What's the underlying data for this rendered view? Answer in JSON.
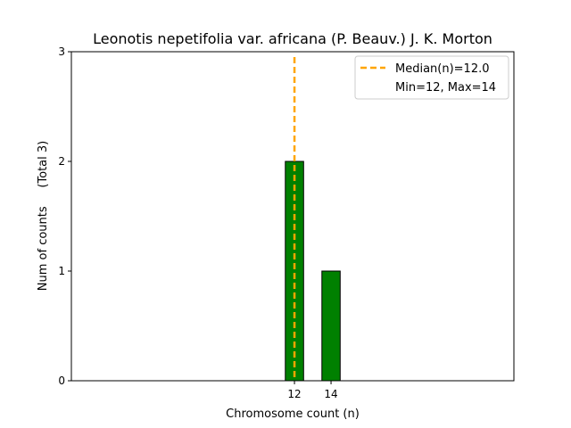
{
  "chart_data": {
    "type": "bar",
    "title": "Leonotis nepetifolia var. africana (P. Beauv.) J. K. Morton",
    "xlabel": "Chromosome count (n)",
    "ylabel": "Num of counts     (Total 3)",
    "x": [
      12,
      14
    ],
    "values": [
      2,
      1
    ],
    "xlim": [
      -0.2,
      24.0
    ],
    "ylim": [
      0,
      3
    ],
    "x_ticks": [
      12,
      14
    ],
    "y_ticks": [
      0,
      1,
      2,
      3
    ],
    "bar_width": 1.0,
    "bar_color": "#008000",
    "bar_edge_color": "#000000",
    "baseline_extent": [
      2.0,
      17.6
    ],
    "median": 12.0,
    "median_color": "#ffa500",
    "legend_position": "upper right",
    "legend": [
      {
        "label": "Median(n)=12.0",
        "kind": "dashed-line",
        "color": "#ffa500"
      },
      {
        "label": "Min=12, Max=14",
        "kind": "none"
      }
    ],
    "grid": false
  }
}
